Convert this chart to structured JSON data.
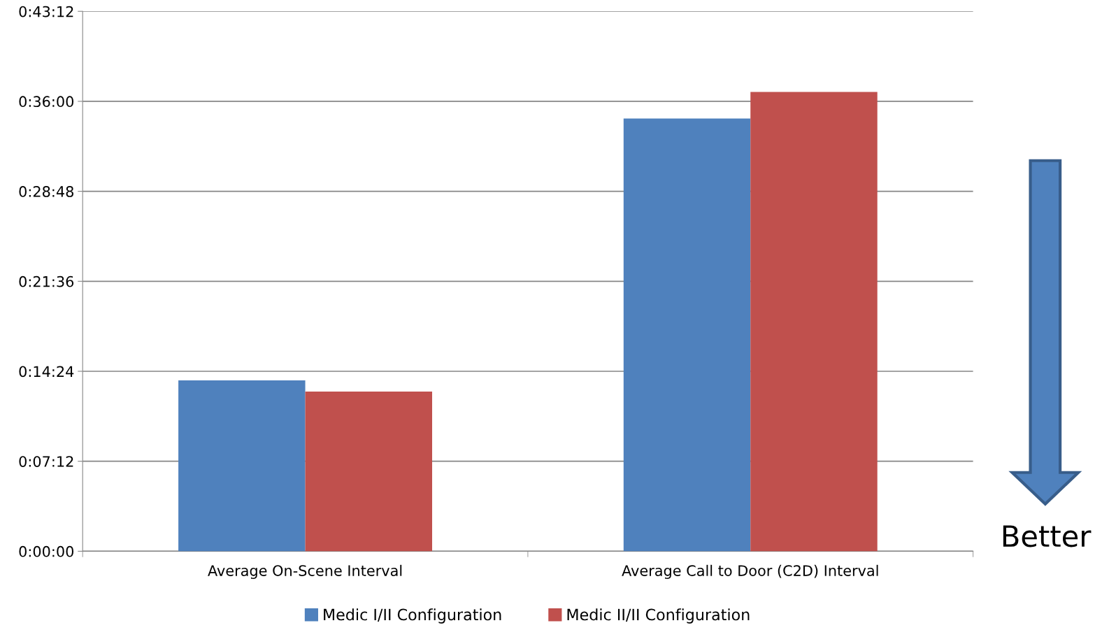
{
  "chart_data": {
    "type": "bar",
    "categories": [
      "Average On-Scene Interval",
      "Average Call to Door (C2D) Interval"
    ],
    "series": [
      {
        "name": "Medic I/II Configuration",
        "color": "#4f81bd",
        "values": [
          13.67,
          34.62
        ]
      },
      {
        "name": "Medic II/II Configuration",
        "color": "#c0504d",
        "values": [
          12.77,
          36.75
        ]
      }
    ],
    "ylim": [
      0,
      43.2
    ],
    "yticks": [
      {
        "value": 0,
        "label": "0:00:00"
      },
      {
        "value": 7.2,
        "label": "0:07:12"
      },
      {
        "value": 14.4,
        "label": "0:14:24"
      },
      {
        "value": 21.6,
        "label": "0:21:36"
      },
      {
        "value": 28.8,
        "label": "0:28:48"
      },
      {
        "value": 36,
        "label": "0:36:00"
      },
      {
        "value": 43.2,
        "label": "0:43:12"
      }
    ],
    "grid": "y",
    "legend": "bottom",
    "annotations": [
      "Better"
    ]
  }
}
